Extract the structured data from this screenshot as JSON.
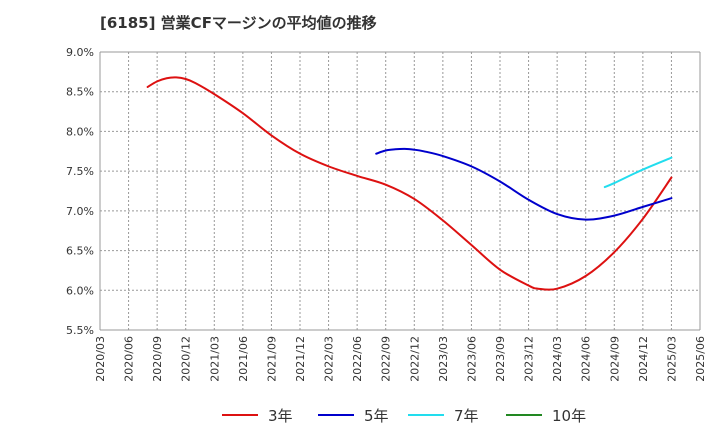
{
  "title": "[6185]  営業CFマージンの平均値の推移",
  "chart_data": {
    "type": "line",
    "title": "[6185]  営業CFマージンの平均値の推移",
    "ylim": [
      5.5,
      9.0
    ],
    "y_ticks": [
      "9.0%",
      "8.5%",
      "8.0%",
      "7.5%",
      "7.0%",
      "6.5%",
      "6.0%",
      "5.5%"
    ],
    "y_tick_values": [
      9.0,
      8.5,
      8.0,
      7.5,
      7.0,
      6.5,
      6.0,
      5.5
    ],
    "x_ticks": [
      "2020/03",
      "2020/06",
      "2020/09",
      "2020/12",
      "2021/03",
      "2021/06",
      "2021/09",
      "2021/12",
      "2022/03",
      "2022/06",
      "2022/09",
      "2022/12",
      "2023/03",
      "2023/06",
      "2023/09",
      "2023/12",
      "2024/03",
      "2024/06",
      "2024/09",
      "2024/12",
      "2025/03",
      "2025/06"
    ],
    "grid": true,
    "legend_position": "bottom",
    "series": [
      {
        "name": "3年",
        "color": "#dd1111",
        "x": [
          "2020/08",
          "2020/09",
          "2020/10",
          "2020/11",
          "2020/12",
          "2021/01",
          "2021/03",
          "2021/06",
          "2021/09",
          "2021/12",
          "2022/03",
          "2022/06",
          "2022/09",
          "2022/12",
          "2023/03",
          "2023/06",
          "2023/09",
          "2023/12",
          "2024/01",
          "2024/03",
          "2024/06",
          "2024/09",
          "2024/12",
          "2025/03"
        ],
        "values": [
          8.56,
          8.63,
          8.67,
          8.68,
          8.66,
          8.61,
          8.47,
          8.23,
          7.95,
          7.72,
          7.56,
          7.44,
          7.33,
          7.15,
          6.88,
          6.57,
          6.26,
          6.06,
          6.02,
          6.02,
          6.18,
          6.48,
          6.9,
          7.42
        ]
      },
      {
        "name": "5年",
        "color": "#0000cc",
        "x": [
          "2022/08",
          "2022/09",
          "2022/10",
          "2022/11",
          "2022/12",
          "2023/01",
          "2023/03",
          "2023/06",
          "2023/09",
          "2023/12",
          "2024/03",
          "2024/06",
          "2024/09",
          "2024/12",
          "2025/03"
        ],
        "values": [
          7.72,
          7.76,
          7.775,
          7.78,
          7.77,
          7.75,
          7.69,
          7.56,
          7.37,
          7.14,
          6.96,
          6.89,
          6.94,
          7.05,
          7.16
        ]
      },
      {
        "name": "7年",
        "color": "#22ddee",
        "x": [
          "2024/08",
          "2024/09",
          "2024/12",
          "2025/03"
        ],
        "values": [
          7.3,
          7.35,
          7.52,
          7.67
        ]
      },
      {
        "name": "10年",
        "color": "#228822",
        "x": [],
        "values": []
      }
    ]
  }
}
